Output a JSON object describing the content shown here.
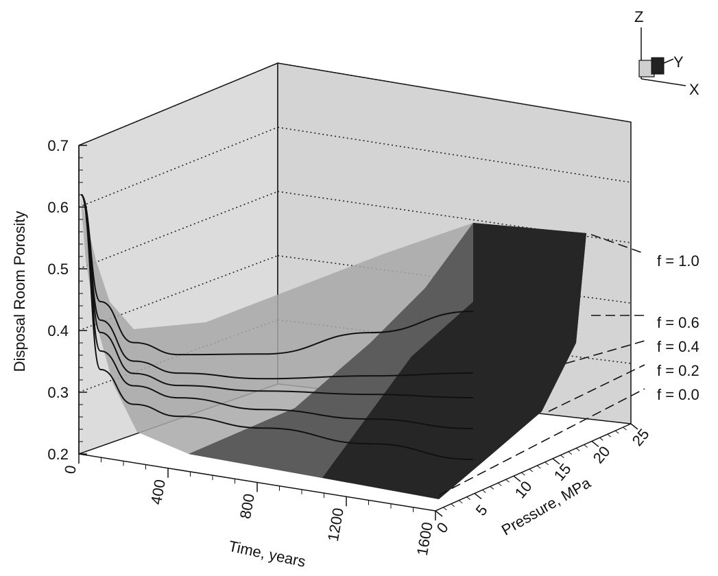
{
  "chart_data": {
    "type": "surface3d",
    "zlabel": "Disposal Room Porosity",
    "xlabel": "Time, years",
    "ylabel": "Pressure, MPa",
    "z_ticks": [
      "0.2",
      "0.3",
      "0.4",
      "0.5",
      "0.6",
      "0.7"
    ],
    "x_ticks": [
      "0",
      "400",
      "800",
      "1200",
      "1600"
    ],
    "y_ticks": [
      "0",
      "5",
      "10",
      "15",
      "20",
      "25"
    ],
    "zlim": [
      0.2,
      0.7
    ],
    "xlim": [
      0,
      1600
    ],
    "ylim": [
      0,
      25
    ],
    "axis_triad": {
      "z": "Z",
      "y": "Y",
      "x": "X"
    },
    "grid_z_levels": [
      0.3,
      0.4,
      0.5,
      0.6,
      0.7
    ],
    "series": [
      {
        "name": "f = 1.0",
        "x": [
          0,
          50,
          150,
          300,
          600,
          1000,
          1400
        ],
        "y": [
          0.62,
          0.45,
          0.39,
          0.38,
          0.4,
          0.46,
          0.52
        ]
      },
      {
        "name": "f = 0.6",
        "x": [
          0,
          50,
          150,
          300,
          600,
          1000,
          1400
        ],
        "y": [
          0.62,
          0.42,
          0.36,
          0.35,
          0.36,
          0.39,
          0.42
        ]
      },
      {
        "name": "f = 0.4",
        "x": [
          0,
          50,
          150,
          300,
          600,
          1000,
          1400
        ],
        "y": [
          0.62,
          0.4,
          0.34,
          0.33,
          0.34,
          0.36,
          0.38
        ]
      },
      {
        "name": "f = 0.2",
        "x": [
          0,
          50,
          150,
          300,
          600,
          1000,
          1400
        ],
        "y": [
          0.62,
          0.37,
          0.32,
          0.31,
          0.31,
          0.32,
          0.33
        ]
      },
      {
        "name": "f = 0.0",
        "x": [
          0,
          50,
          150,
          300,
          600,
          1000,
          1400
        ],
        "y": [
          0.62,
          0.34,
          0.29,
          0.28,
          0.28,
          0.28,
          0.28
        ]
      }
    ],
    "grid": true
  }
}
